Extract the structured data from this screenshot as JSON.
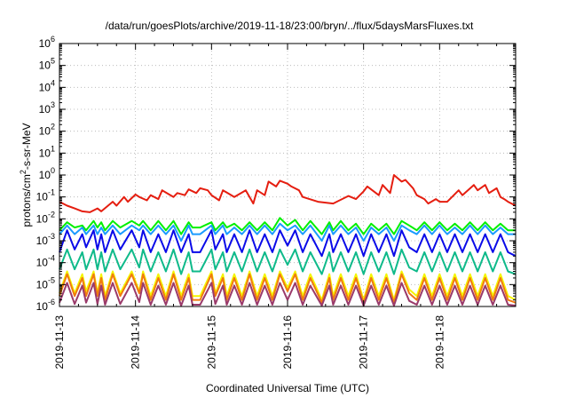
{
  "chart_data": {
    "type": "line",
    "title": "/data/run/goesPlots/archive/2019-11-18/23:00/bryn/../flux/5daysMarsFluxes.txt",
    "xlabel": "Coordinated Universal Time (UTC)",
    "ylabel": "protons/cm2-s-sr-MeV",
    "yscale": "log",
    "ylim": [
      1e-06,
      1000000.0
    ],
    "xlim": [
      "2019-11-13 00:00",
      "2019-11-19 00:00"
    ],
    "x_tick_labels": [
      "2019-11-13",
      "2019-11-14",
      "2019-11-15",
      "2019-11-16",
      "2019-11-17",
      "2019-11-18"
    ],
    "y_tick_labels": [
      {
        "base": "10",
        "exp": "-6"
      },
      {
        "base": "10",
        "exp": "-5"
      },
      {
        "base": "10",
        "exp": "-4"
      },
      {
        "base": "10",
        "exp": "-3"
      },
      {
        "base": "10",
        "exp": "-2"
      },
      {
        "base": "10",
        "exp": "-1"
      },
      {
        "base": "10",
        "exp": "0"
      },
      {
        "base": "10",
        "exp": "1"
      },
      {
        "base": "10",
        "exp": "2"
      },
      {
        "base": "10",
        "exp": "3"
      },
      {
        "base": "10",
        "exp": "4"
      },
      {
        "base": "10",
        "exp": "5"
      },
      {
        "base": "10",
        "exp": "6"
      }
    ],
    "grid": true,
    "legend": "none",
    "series": [
      {
        "color": "#e51e10",
        "x": [
          0,
          0.1,
          0.2,
          0.3,
          0.4,
          0.5,
          0.55,
          0.7,
          0.75,
          0.85,
          0.9,
          1.0,
          1.05,
          1.15,
          1.2,
          1.3,
          1.35,
          1.5,
          1.55,
          1.65,
          1.7,
          1.8,
          1.85,
          1.95,
          2.0,
          2.1,
          2.15,
          2.3,
          2.45,
          2.55,
          2.6,
          2.7,
          2.75,
          2.85,
          2.9,
          3.0,
          3.05,
          3.15,
          3.2,
          3.4,
          3.6,
          3.8,
          3.9,
          4.0,
          4.05,
          4.2,
          4.25,
          4.35,
          4.4,
          4.5,
          4.55,
          4.65,
          4.7,
          4.8,
          4.85,
          4.95,
          5.0,
          5.1,
          5.15,
          5.25,
          5.3,
          5.45,
          5.5,
          5.6,
          5.65,
          5.75,
          5.8,
          5.85,
          5.9,
          6.0
        ],
        "y": [
          0.06,
          0.04,
          0.03,
          0.022,
          0.02,
          0.03,
          0.022,
          0.06,
          0.04,
          0.1,
          0.06,
          0.13,
          0.1,
          0.07,
          0.12,
          0.08,
          0.2,
          0.1,
          0.15,
          0.12,
          0.22,
          0.15,
          0.25,
          0.2,
          0.12,
          0.07,
          0.2,
          0.1,
          0.2,
          0.05,
          0.2,
          0.12,
          0.5,
          0.3,
          0.55,
          0.4,
          0.3,
          0.2,
          0.1,
          0.06,
          0.05,
          0.11,
          0.08,
          0.18,
          0.3,
          0.12,
          0.35,
          0.15,
          1.0,
          0.5,
          0.6,
          0.25,
          0.12,
          0.08,
          0.05,
          0.08,
          0.06,
          0.06,
          0.09,
          0.2,
          0.12,
          0.35,
          0.2,
          0.35,
          0.15,
          0.25,
          0.1,
          0.08,
          0.06,
          0.04
        ]
      },
      {
        "color": "#00ef00",
        "x": [
          0,
          0.1,
          0.2,
          0.3,
          0.35,
          0.45,
          0.5,
          0.55,
          0.6,
          0.7,
          0.8,
          0.95,
          1.05,
          1.1,
          1.2,
          1.3,
          1.4,
          1.5,
          1.6,
          1.7,
          1.75,
          1.85,
          2.0,
          2.05,
          2.15,
          2.2,
          2.3,
          2.4,
          2.5,
          2.6,
          2.7,
          2.8,
          2.9,
          3.0,
          3.1,
          3.2,
          3.3,
          3.45,
          3.55,
          3.6,
          3.7,
          3.8,
          3.9,
          4.0,
          4.1,
          4.2,
          4.3,
          4.4,
          4.5,
          4.6,
          4.7,
          4.8,
          4.9,
          5.0,
          5.1,
          5.2,
          5.3,
          5.4,
          5.5,
          5.6,
          5.7,
          5.8,
          5.9,
          6.0
        ],
        "y": [
          0.003,
          0.007,
          0.004,
          0.005,
          0.003,
          0.008,
          0.004,
          0.007,
          0.003,
          0.008,
          0.004,
          0.008,
          0.005,
          0.008,
          0.003,
          0.008,
          0.003,
          0.008,
          0.002,
          0.007,
          0.004,
          0.004,
          0.007,
          0.003,
          0.007,
          0.004,
          0.006,
          0.003,
          0.007,
          0.003,
          0.007,
          0.003,
          0.011,
          0.005,
          0.009,
          0.003,
          0.008,
          0.002,
          0.007,
          0.003,
          0.008,
          0.003,
          0.006,
          0.002,
          0.006,
          0.003,
          0.006,
          0.002,
          0.008,
          0.005,
          0.003,
          0.007,
          0.003,
          0.007,
          0.003,
          0.006,
          0.003,
          0.007,
          0.003,
          0.007,
          0.003,
          0.006,
          0.003,
          0.003
        ]
      },
      {
        "color": "#1a9bff",
        "x": [
          0,
          0.1,
          0.2,
          0.3,
          0.35,
          0.45,
          0.5,
          0.55,
          0.6,
          0.7,
          0.8,
          0.95,
          1.05,
          1.1,
          1.2,
          1.3,
          1.4,
          1.5,
          1.6,
          1.7,
          1.75,
          1.85,
          2.0,
          2.05,
          2.15,
          2.2,
          2.3,
          2.4,
          2.5,
          2.6,
          2.7,
          2.8,
          2.9,
          3.0,
          3.1,
          3.2,
          3.3,
          3.45,
          3.55,
          3.6,
          3.7,
          3.8,
          3.9,
          4.0,
          4.1,
          4.2,
          4.3,
          4.4,
          4.5,
          4.6,
          4.7,
          4.8,
          4.9,
          5.0,
          5.1,
          5.2,
          5.3,
          5.4,
          5.5,
          5.6,
          5.7,
          5.8,
          5.9,
          6.0
        ],
        "y": [
          0.002,
          0.005,
          0.002,
          0.004,
          0.002,
          0.005,
          0.002,
          0.004,
          0.002,
          0.005,
          0.002,
          0.005,
          0.003,
          0.005,
          0.002,
          0.005,
          0.002,
          0.005,
          0.001,
          0.005,
          0.002,
          0.002,
          0.005,
          0.002,
          0.005,
          0.002,
          0.004,
          0.002,
          0.005,
          0.002,
          0.005,
          0.002,
          0.006,
          0.003,
          0.005,
          0.002,
          0.005,
          0.001,
          0.005,
          0.002,
          0.005,
          0.002,
          0.004,
          0.001,
          0.004,
          0.002,
          0.004,
          0.001,
          0.005,
          0.003,
          0.002,
          0.005,
          0.002,
          0.005,
          0.002,
          0.004,
          0.002,
          0.005,
          0.002,
          0.005,
          0.002,
          0.004,
          0.002,
          0.002
        ]
      },
      {
        "color": "#0a0ae8",
        "x": [
          0,
          0.1,
          0.2,
          0.3,
          0.35,
          0.45,
          0.5,
          0.55,
          0.6,
          0.7,
          0.8,
          0.95,
          1.05,
          1.1,
          1.2,
          1.3,
          1.4,
          1.5,
          1.6,
          1.7,
          1.75,
          1.85,
          2.0,
          2.05,
          2.15,
          2.2,
          2.3,
          2.4,
          2.5,
          2.6,
          2.7,
          2.8,
          2.9,
          3.0,
          3.1,
          3.2,
          3.3,
          3.45,
          3.55,
          3.6,
          3.7,
          3.8,
          3.9,
          4.0,
          4.1,
          4.2,
          4.3,
          4.4,
          4.5,
          4.6,
          4.7,
          4.8,
          4.9,
          5.0,
          5.1,
          5.2,
          5.3,
          5.4,
          5.5,
          5.6,
          5.7,
          5.8,
          5.9,
          6.0
        ],
        "y": [
          0.0003,
          0.003,
          0.0004,
          0.002,
          0.0005,
          0.003,
          0.0004,
          0.002,
          0.0003,
          0.003,
          0.0004,
          0.003,
          0.0005,
          0.003,
          0.0003,
          0.002,
          0.0003,
          0.003,
          0.0003,
          0.002,
          0.0003,
          0.0003,
          0.003,
          0.0004,
          0.002,
          0.0003,
          0.002,
          0.0003,
          0.003,
          0.0003,
          0.002,
          0.0003,
          0.003,
          0.0006,
          0.003,
          0.0003,
          0.002,
          0.0002,
          0.002,
          0.0003,
          0.002,
          0.0003,
          0.002,
          0.0002,
          0.002,
          0.0003,
          0.002,
          0.0002,
          0.003,
          0.0005,
          0.0003,
          0.002,
          0.0003,
          0.002,
          0.0003,
          0.002,
          0.0003,
          0.002,
          0.0003,
          0.002,
          0.0003,
          0.002,
          0.0003,
          0.0002
        ]
      },
      {
        "color": "#0fba8a",
        "x": [
          0,
          0.1,
          0.2,
          0.3,
          0.35,
          0.45,
          0.5,
          0.55,
          0.6,
          0.7,
          0.8,
          0.95,
          1.05,
          1.1,
          1.2,
          1.3,
          1.4,
          1.5,
          1.6,
          1.7,
          1.75,
          1.85,
          2.0,
          2.05,
          2.15,
          2.2,
          2.3,
          2.4,
          2.5,
          2.6,
          2.7,
          2.8,
          2.9,
          3.0,
          3.1,
          3.2,
          3.3,
          3.45,
          3.55,
          3.6,
          3.7,
          3.8,
          3.9,
          4.0,
          4.1,
          4.2,
          4.3,
          4.4,
          4.5,
          4.6,
          4.7,
          4.8,
          4.9,
          5.0,
          5.1,
          5.2,
          5.3,
          5.4,
          5.5,
          5.6,
          5.7,
          5.8,
          5.9,
          6.0
        ],
        "y": [
          5e-05,
          0.0004,
          5e-05,
          0.0003,
          5e-05,
          0.0004,
          5e-05,
          0.0003,
          4e-05,
          0.0004,
          5e-05,
          0.0004,
          6e-05,
          0.0004,
          4e-05,
          0.0003,
          4e-05,
          0.0004,
          3e-05,
          0.0003,
          4e-05,
          4e-05,
          0.0004,
          5e-05,
          0.0003,
          4e-05,
          0.0003,
          4e-05,
          0.0004,
          4e-05,
          0.0003,
          4e-05,
          0.0004,
          8e-05,
          0.0004,
          4e-05,
          0.0003,
          3e-05,
          0.0003,
          4e-05,
          0.0003,
          4e-05,
          0.0003,
          3e-05,
          0.0003,
          4e-05,
          0.0003,
          3e-05,
          0.0004,
          6e-05,
          4e-05,
          0.0003,
          4e-05,
          0.0003,
          4e-05,
          0.0003,
          4e-05,
          0.0003,
          4e-05,
          0.0003,
          4e-05,
          0.0003,
          4e-05,
          3e-05
        ]
      },
      {
        "color": "#f5f500",
        "x": [
          0,
          0.1,
          0.2,
          0.3,
          0.35,
          0.45,
          0.5,
          0.55,
          0.6,
          0.7,
          0.8,
          0.95,
          1.05,
          1.1,
          1.2,
          1.3,
          1.4,
          1.5,
          1.6,
          1.7,
          1.75,
          1.85,
          2.0,
          2.05,
          2.15,
          2.2,
          2.3,
          2.4,
          2.5,
          2.6,
          2.7,
          2.8,
          2.9,
          3.0,
          3.1,
          3.2,
          3.3,
          3.45,
          3.55,
          3.6,
          3.7,
          3.8,
          3.9,
          4.0,
          4.1,
          4.2,
          4.3,
          4.4,
          4.5,
          4.6,
          4.7,
          4.8,
          4.9,
          5.0,
          5.1,
          5.2,
          5.3,
          5.4,
          5.5,
          5.6,
          5.7,
          5.8,
          5.9,
          6.0
        ],
        "y": [
          4e-06,
          4e-05,
          4e-06,
          3e-05,
          5e-06,
          4e-05,
          4e-06,
          3e-05,
          3e-06,
          4e-05,
          4e-06,
          4e-05,
          5e-06,
          4e-05,
          3e-06,
          3e-05,
          3e-06,
          4e-05,
          3e-06,
          3e-05,
          3e-06,
          3e-06,
          4e-05,
          4e-06,
          3e-05,
          3e-06,
          3e-05,
          3e-06,
          4e-05,
          3e-06,
          3e-05,
          3e-06,
          4e-05,
          7e-06,
          4e-05,
          3e-06,
          3e-05,
          2e-06,
          3e-05,
          3e-06,
          3e-05,
          3e-06,
          3e-05,
          2e-06,
          3e-05,
          3e-06,
          3e-05,
          2e-06,
          4e-05,
          6e-06,
          3e-06,
          3e-05,
          3e-06,
          3e-05,
          3e-06,
          3e-05,
          3e-06,
          3e-05,
          3e-06,
          3e-05,
          3e-06,
          3e-05,
          3e-06,
          2e-06
        ]
      },
      {
        "color": "#f07a10",
        "x": [
          0,
          0.1,
          0.2,
          0.3,
          0.35,
          0.45,
          0.5,
          0.55,
          0.6,
          0.7,
          0.8,
          0.95,
          1.05,
          1.1,
          1.2,
          1.3,
          1.4,
          1.5,
          1.6,
          1.7,
          1.75,
          1.85,
          2.0,
          2.05,
          2.15,
          2.2,
          2.3,
          2.4,
          2.5,
          2.6,
          2.7,
          2.8,
          2.9,
          3.0,
          3.1,
          3.2,
          3.3,
          3.45,
          3.55,
          3.6,
          3.7,
          3.8,
          3.9,
          4.0,
          4.1,
          4.2,
          4.3,
          4.4,
          4.5,
          4.6,
          4.7,
          4.8,
          4.9,
          5.0,
          5.1,
          5.2,
          5.3,
          5.4,
          5.5,
          5.6,
          5.7,
          5.8,
          5.9,
          6.0
        ],
        "y": [
          3e-06,
          3e-05,
          3e-06,
          2e-05,
          3e-06,
          3e-05,
          3e-06,
          2e-05,
          2e-06,
          3e-05,
          3e-06,
          3e-05,
          4e-06,
          3e-05,
          2e-06,
          2e-05,
          2e-06,
          3e-05,
          2e-06,
          2e-05,
          2e-06,
          2e-06,
          3e-05,
          3e-06,
          2e-05,
          2e-06,
          2e-05,
          2e-06,
          3e-05,
          2e-06,
          2e-05,
          2e-06,
          3e-05,
          5e-06,
          3e-05,
          2e-06,
          2e-05,
          1.5e-06,
          2e-05,
          2e-06,
          2e-05,
          2e-06,
          2e-05,
          1.5e-06,
          2e-05,
          2e-06,
          2e-05,
          1.5e-06,
          3e-05,
          4e-06,
          2e-06,
          2e-05,
          2e-06,
          2e-05,
          2e-06,
          2e-05,
          2e-06,
          2e-05,
          2e-06,
          2e-05,
          2e-06,
          2e-05,
          2e-06,
          1.5e-06
        ]
      },
      {
        "color": "#9a3a6a",
        "x": [
          0,
          0.1,
          0.2,
          0.3,
          0.35,
          0.45,
          0.5,
          0.55,
          0.6,
          0.7,
          0.8,
          0.95,
          1.05,
          1.1,
          1.2,
          1.3,
          1.4,
          1.5,
          1.6,
          1.7,
          1.75,
          1.85,
          2.0,
          2.05,
          2.15,
          2.2,
          2.3,
          2.4,
          2.5,
          2.6,
          2.7,
          2.8,
          2.9,
          3.0,
          3.1,
          3.2,
          3.3,
          3.45,
          3.55,
          3.6,
          3.7,
          3.8,
          3.9,
          4.0,
          4.1,
          4.2,
          4.3,
          4.4,
          4.5,
          4.6,
          4.7,
          4.8,
          4.9,
          5.0,
          5.1,
          5.2,
          5.3,
          5.4,
          5.5,
          5.6,
          5.7,
          5.8,
          5.9,
          6.0
        ],
        "y": [
          1.5e-06,
          1.2e-05,
          1.3e-06,
          9e-06,
          1.5e-06,
          1.2e-05,
          1.3e-06,
          9e-06,
          1.2e-06,
          1.2e-05,
          1.3e-06,
          1.2e-05,
          1.6e-06,
          1.2e-05,
          1.2e-06,
          9e-06,
          1.2e-06,
          1.2e-05,
          1.1e-06,
          9e-06,
          1.2e-06,
          1.2e-06,
          1.2e-05,
          1.3e-06,
          9e-06,
          1.2e-06,
          9e-06,
          1.2e-06,
          1.2e-05,
          1.2e-06,
          9e-06,
          1.2e-06,
          1.2e-05,
          2e-06,
          1.2e-05,
          1.2e-06,
          9e-06,
          1.1e-06,
          9e-06,
          1.2e-06,
          9e-06,
          1.2e-06,
          9e-06,
          1.1e-06,
          9e-06,
          1.2e-06,
          9e-06,
          1.1e-06,
          1.2e-05,
          1.8e-06,
          1.2e-06,
          9e-06,
          1.2e-06,
          9e-06,
          1.2e-06,
          9e-06,
          1.2e-06,
          9e-06,
          1.2e-06,
          9e-06,
          1.2e-06,
          9e-06,
          1.2e-06,
          1.1e-06
        ]
      }
    ]
  }
}
